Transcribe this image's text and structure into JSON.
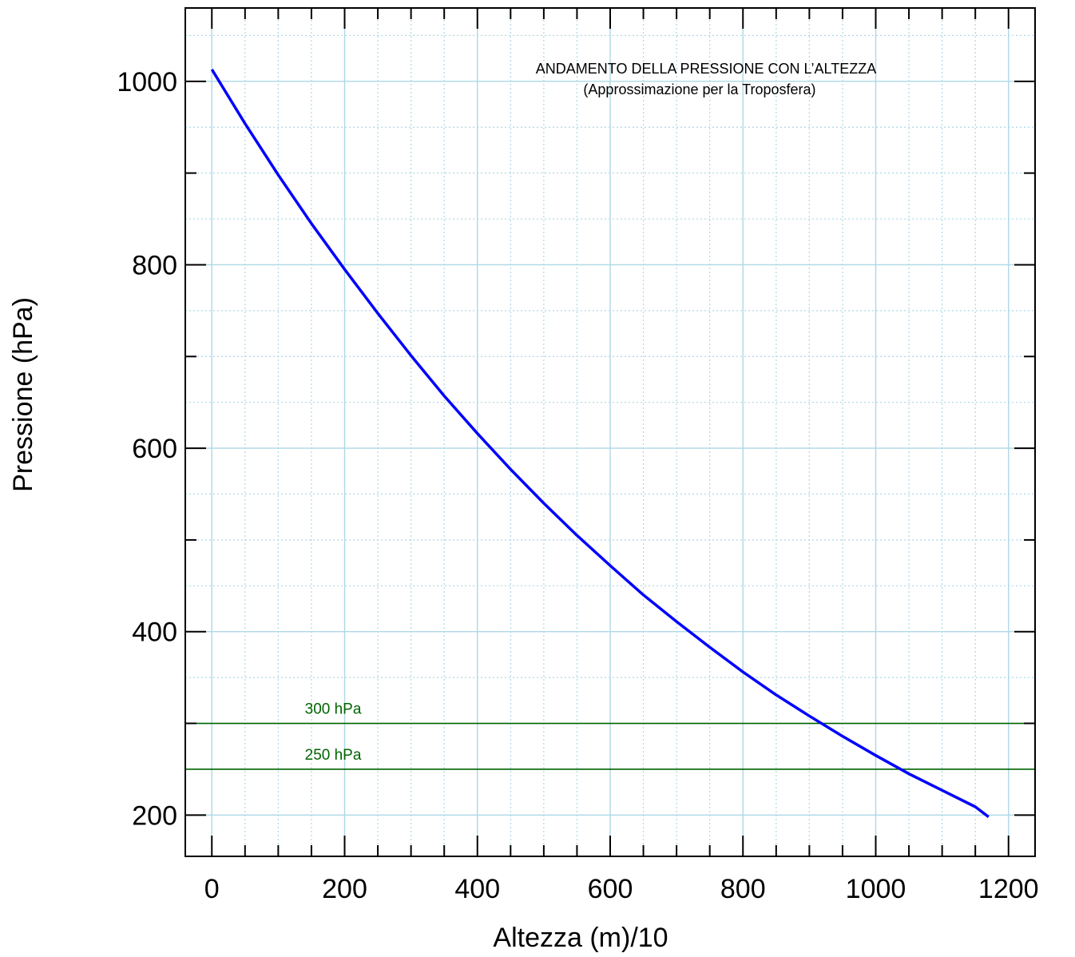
{
  "chart_data": {
    "type": "line",
    "title": "ANDAMENTO DELLA PRESSIONE CON L’ALTEZZA",
    "subtitle": "(Approssimazione per la Troposfera)",
    "xlabel": "Altezza (m)/10",
    "ylabel": "Pressione (hPa)",
    "xlim": [
      -40,
      1240
    ],
    "ylim": [
      155,
      1080
    ],
    "x_ticks": [
      0,
      200,
      400,
      600,
      800,
      1000,
      1200
    ],
    "x_tick_labels": [
      "0",
      "200",
      "400",
      "600",
      "800",
      "1000",
      "1200"
    ],
    "y_ticks": [
      200,
      400,
      600,
      800,
      1000
    ],
    "y_tick_labels": [
      "200",
      "400",
      "600",
      "800",
      "1000"
    ],
    "grid": true,
    "grid_color": "#add8e6",
    "series": [
      {
        "color": "#0000ff",
        "x": [
          0,
          50,
          100,
          150,
          200,
          250,
          300,
          350,
          400,
          450,
          500,
          550,
          600,
          650,
          700,
          750,
          800,
          850,
          900,
          950,
          1000,
          1050,
          1100,
          1150,
          1170
        ],
        "y": [
          1013,
          954,
          898,
          845,
          795,
          747,
          701,
          657,
          616,
          577,
          540,
          505,
          472,
          440,
          411,
          383,
          356,
          331,
          308,
          286,
          265,
          245,
          227,
          209,
          198
        ]
      }
    ],
    "reference_lines": [
      {
        "y": 300,
        "label": "300 hPa",
        "color": "#006400"
      },
      {
        "y": 250,
        "label": "250 hPa",
        "color": "#006400"
      }
    ]
  }
}
